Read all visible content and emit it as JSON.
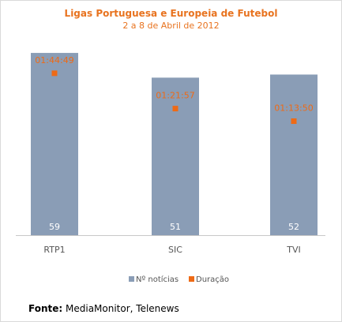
{
  "colors": {
    "bar": "#8a9db6",
    "marker": "#ee6a16",
    "title": "#e8731f",
    "axis": "#c8c8c8",
    "bar_label": "#ffffff",
    "tick_label": "#555555",
    "legend_text": "#555555"
  },
  "chart_data": {
    "type": "bar",
    "title": "Ligas Portuguesa e Europeia de Futebol",
    "subtitle": "2 a 8 de Abril de 2012",
    "categories": [
      "RTP1",
      "SIC",
      "TVI"
    ],
    "series": [
      {
        "name": "Nº notícias",
        "kind": "bar",
        "values": [
          59,
          51,
          52
        ]
      },
      {
        "name": "Duração",
        "kind": "point",
        "values": [
          104.82,
          81.95,
          73.83
        ],
        "labels": [
          "01:44:49",
          "01:21:57",
          "01:13:50"
        ],
        "unit": "minutes"
      }
    ],
    "bar_axis_range": [
      0,
      70
    ],
    "duration_axis_range": [
      0,
      140
    ],
    "grid": false,
    "legend_position": "bottom"
  },
  "source": {
    "label": "Fonte:",
    "text": "MediaMonitor, Telenews"
  }
}
